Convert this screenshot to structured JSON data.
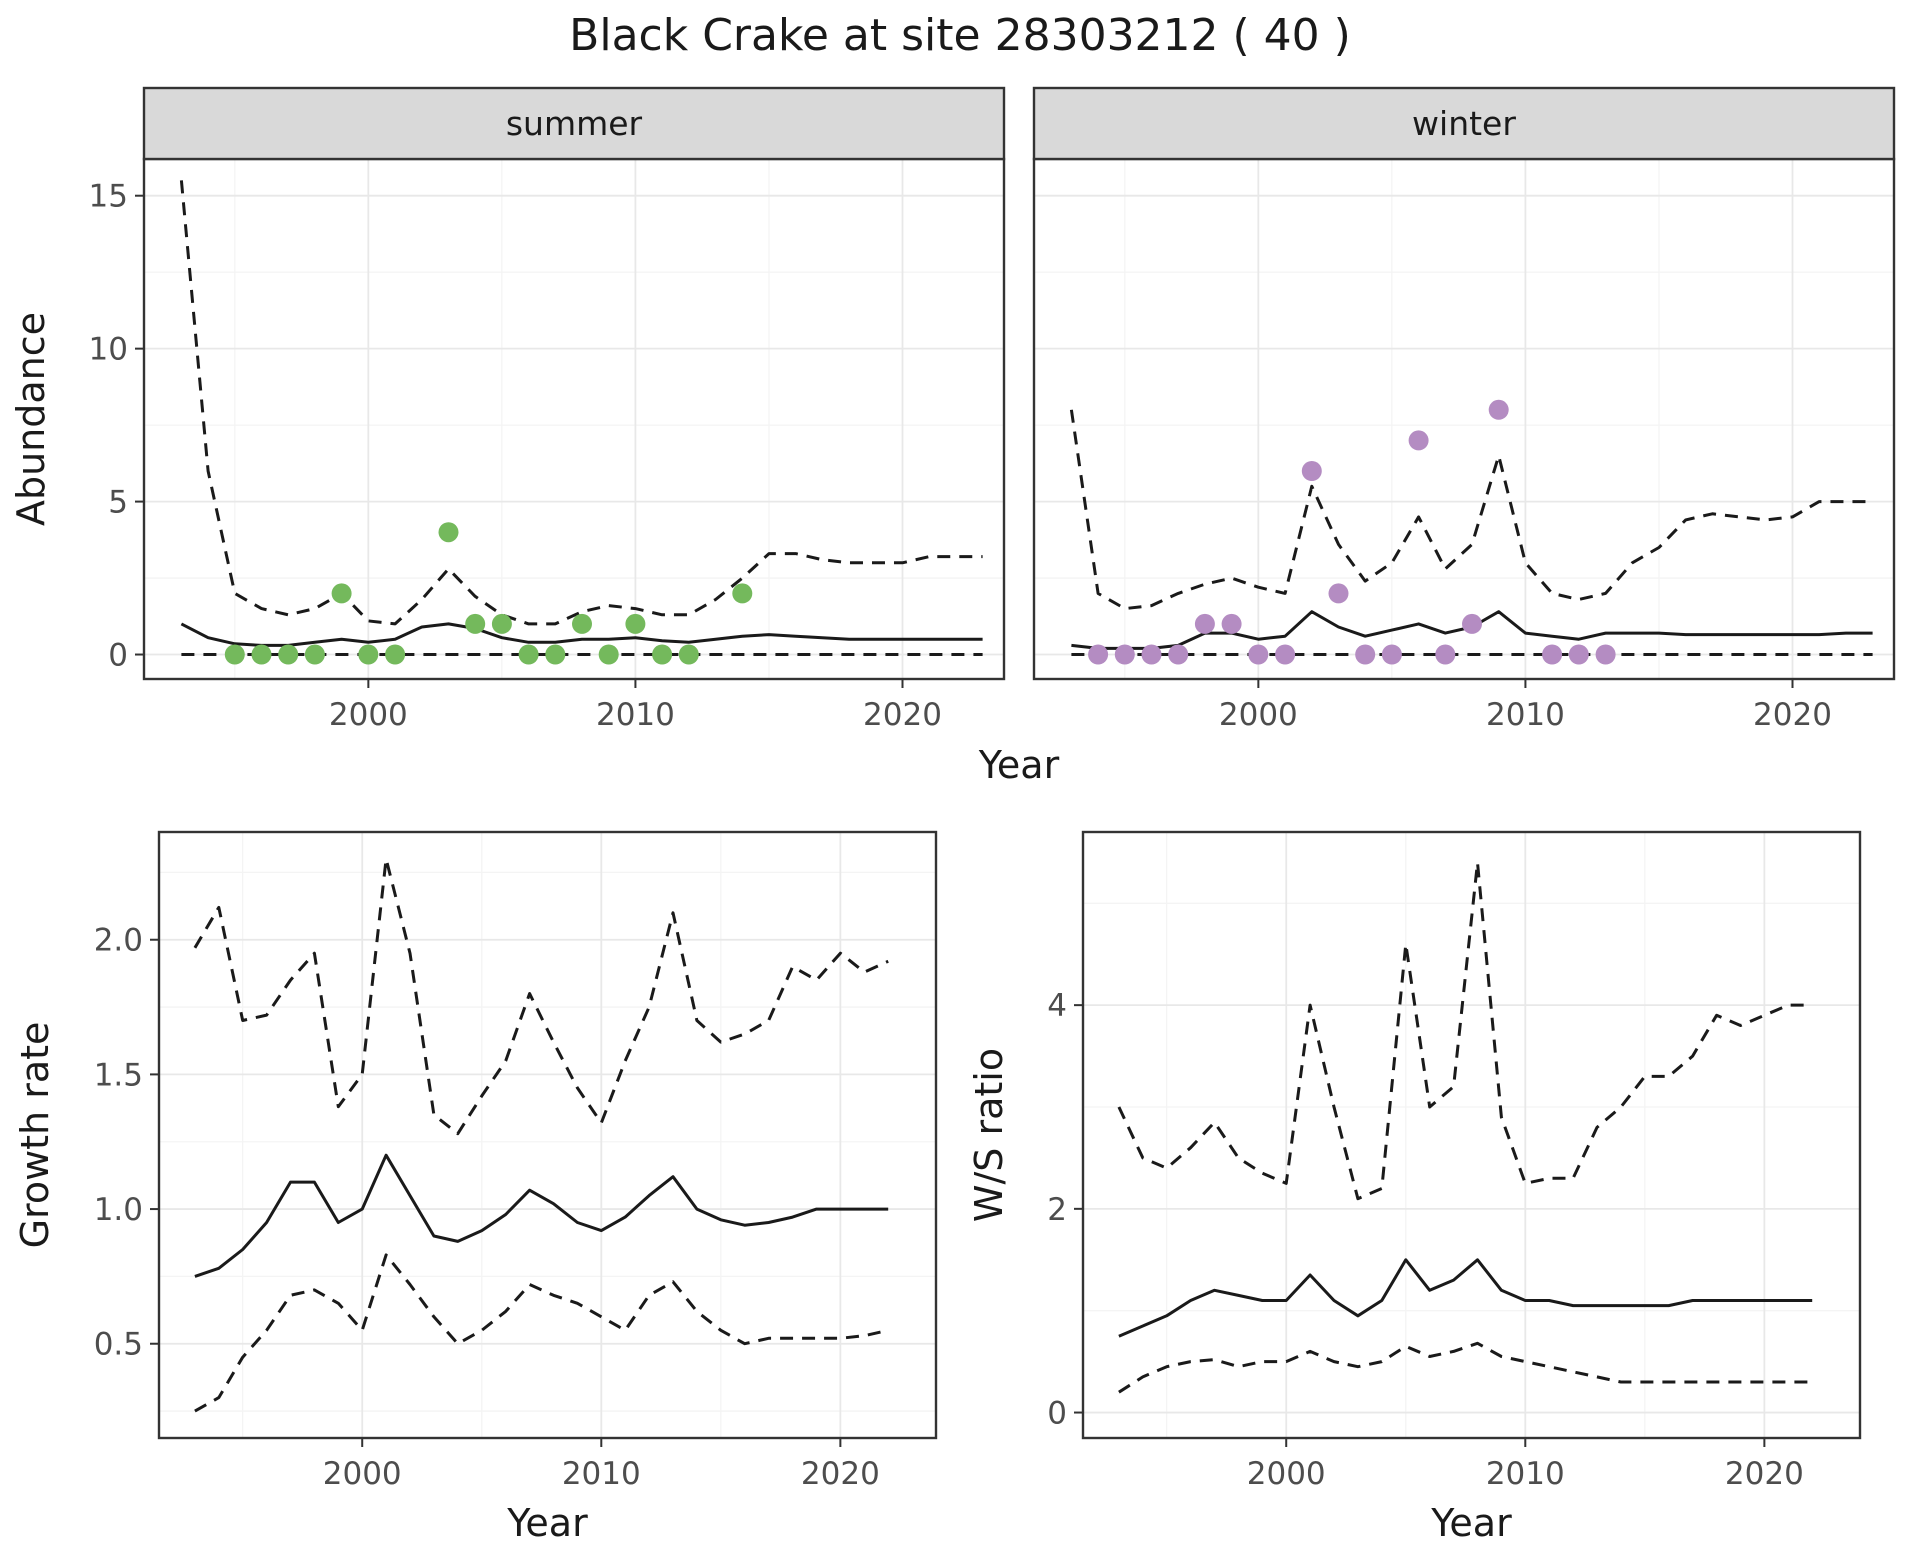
{
  "title": "Black Crake at site 28303212 ( 40 )",
  "colors": {
    "summer_points": "#74b95c",
    "winter_points": "#b48cc2",
    "line": "#1a1a1a",
    "panel_bg": "#ffffff",
    "panel_border": "#333333",
    "grid_major": "#e8e8e8",
    "grid_minor": "#f4f4f4",
    "strip_bg": "#d9d9d9",
    "strip_text": "#1a1a1a",
    "tick": "#333333",
    "tick_text": "#4d4d4d",
    "title_text": "#1a1a1a"
  },
  "chart_data": [
    {
      "id": "abundance-summer",
      "type": "line",
      "facet_label": "summer",
      "xlabel": "Year",
      "ylabel": "Abundance",
      "xlim": [
        1991.6,
        2023.8
      ],
      "ylim": [
        -0.8,
        16.2
      ],
      "xticks": [
        2000,
        2010,
        2020
      ],
      "xtick_labels": [
        "2000",
        "2010",
        "2020"
      ],
      "yticks": [
        0,
        5,
        10,
        15
      ],
      "ytick_labels": [
        "0",
        "5",
        "10",
        "15"
      ],
      "x": [
        1993,
        1994,
        1995,
        1996,
        1997,
        1998,
        1999,
        2000,
        2001,
        2002,
        2003,
        2004,
        2005,
        2006,
        2007,
        2008,
        2009,
        2010,
        2011,
        2012,
        2013,
        2014,
        2015,
        2016,
        2017,
        2018,
        2019,
        2020,
        2021,
        2022,
        2023
      ],
      "series": [
        {
          "name": "upper-95ci",
          "style": "dashed",
          "values": [
            15.5,
            6,
            2,
            1.5,
            1.3,
            1.5,
            2,
            1.1,
            1,
            1.8,
            2.8,
            1.9,
            1.3,
            1,
            1,
            1.4,
            1.6,
            1.5,
            1.3,
            1.3,
            1.8,
            2.5,
            3.3,
            3.3,
            3.1,
            3,
            3,
            3,
            3.2,
            3.2,
            3.2
          ]
        },
        {
          "name": "fitted",
          "style": "solid",
          "values": [
            1.0,
            0.55,
            0.35,
            0.3,
            0.3,
            0.4,
            0.5,
            0.4,
            0.5,
            0.9,
            1.0,
            0.85,
            0.55,
            0.4,
            0.4,
            0.5,
            0.5,
            0.55,
            0.45,
            0.4,
            0.5,
            0.6,
            0.65,
            0.6,
            0.55,
            0.5,
            0.5,
            0.5,
            0.5,
            0.5,
            0.5
          ]
        },
        {
          "name": "lower-95ci",
          "style": "dashed",
          "values": [
            0,
            0,
            0,
            0,
            0,
            0,
            0,
            0,
            0,
            0,
            0,
            0,
            0,
            0,
            0,
            0,
            0,
            0,
            0,
            0,
            0,
            0,
            0,
            0,
            0,
            0,
            0,
            0,
            0,
            0,
            0
          ]
        }
      ],
      "points": {
        "name": "observed-counts-summer",
        "color": "#74b95c",
        "x": [
          1995,
          1996,
          1997,
          1998,
          1999,
          2000,
          2001,
          2003,
          2004,
          2005,
          2006,
          2007,
          2008,
          2009,
          2010,
          2011,
          2012,
          2014
        ],
        "y": [
          0,
          0,
          0,
          0,
          2,
          0,
          0,
          4,
          1,
          1,
          0,
          0,
          1,
          0,
          1,
          0,
          0,
          2
        ]
      }
    },
    {
      "id": "abundance-winter",
      "type": "line",
      "facet_label": "winter",
      "xlabel": "Year",
      "ylabel": "Abundance",
      "xlim": [
        1991.6,
        2023.8
      ],
      "ylim": [
        -0.8,
        16.2
      ],
      "xticks": [
        2000,
        2010,
        2020
      ],
      "xtick_labels": [
        "2000",
        "2010",
        "2020"
      ],
      "yticks": [
        0,
        5,
        10,
        15
      ],
      "ytick_labels": [
        "0",
        "5",
        "10",
        "15"
      ],
      "x": [
        1993,
        1994,
        1995,
        1996,
        1997,
        1998,
        1999,
        2000,
        2001,
        2002,
        2003,
        2004,
        2005,
        2006,
        2007,
        2008,
        2009,
        2010,
        2011,
        2012,
        2013,
        2014,
        2015,
        2016,
        2017,
        2018,
        2019,
        2020,
        2021,
        2022,
        2023
      ],
      "series": [
        {
          "name": "upper-95ci",
          "style": "dashed",
          "values": [
            8,
            2,
            1.5,
            1.6,
            2,
            2.3,
            2.5,
            2.2,
            2,
            5.5,
            3.6,
            2.4,
            3,
            4.5,
            2.8,
            3.6,
            6.5,
            3,
            2,
            1.8,
            2,
            3,
            3.5,
            4.4,
            4.6,
            4.5,
            4.4,
            4.5,
            5,
            5,
            5
          ]
        },
        {
          "name": "fitted",
          "style": "solid",
          "values": [
            0.3,
            0.2,
            0.2,
            0.2,
            0.3,
            0.7,
            0.7,
            0.5,
            0.6,
            1.4,
            0.9,
            0.6,
            0.8,
            1.0,
            0.7,
            0.9,
            1.4,
            0.7,
            0.6,
            0.5,
            0.7,
            0.7,
            0.7,
            0.65,
            0.65,
            0.65,
            0.65,
            0.65,
            0.65,
            0.7,
            0.7
          ]
        },
        {
          "name": "lower-95ci",
          "style": "dashed",
          "values": [
            0,
            0,
            0,
            0,
            0,
            0,
            0,
            0,
            0,
            0,
            0,
            0,
            0,
            0,
            0,
            0,
            0,
            0,
            0,
            0,
            0,
            0,
            0,
            0,
            0,
            0,
            0,
            0,
            0,
            0,
            0
          ]
        }
      ],
      "points": {
        "name": "observed-counts-winter",
        "color": "#b48cc2",
        "x": [
          1994,
          1995,
          1996,
          1997,
          1998,
          1999,
          2000,
          2001,
          2002,
          2003,
          2004,
          2005,
          2006,
          2007,
          2008,
          2009,
          2011,
          2012,
          2013
        ],
        "y": [
          0,
          0,
          0,
          0,
          1,
          1,
          0,
          0,
          6,
          2,
          0,
          0,
          7,
          0,
          1,
          8,
          0,
          0,
          0
        ]
      }
    },
    {
      "id": "growth-rate",
      "type": "line",
      "facet_label": "",
      "xlabel": "Year",
      "ylabel": "Growth rate",
      "xlim": [
        1991.5,
        2024.0
      ],
      "ylim": [
        0.15,
        2.4
      ],
      "xticks": [
        2000,
        2010,
        2020
      ],
      "xtick_labels": [
        "2000",
        "2010",
        "2020"
      ],
      "yticks": [
        0.5,
        1.0,
        1.5,
        2.0
      ],
      "ytick_labels": [
        "0.5",
        "1.0",
        "1.5",
        "2.0"
      ],
      "x": [
        1993,
        1994,
        1995,
        1996,
        1997,
        1998,
        1999,
        2000,
        2001,
        2002,
        2003,
        2004,
        2005,
        2006,
        2007,
        2008,
        2009,
        2010,
        2011,
        2012,
        2013,
        2014,
        2015,
        2016,
        2017,
        2018,
        2019,
        2020,
        2021,
        2022
      ],
      "series": [
        {
          "name": "upper-95ci",
          "style": "dashed",
          "values": [
            1.97,
            2.12,
            1.7,
            1.72,
            1.85,
            1.95,
            1.38,
            1.5,
            2.3,
            1.95,
            1.35,
            1.28,
            1.42,
            1.55,
            1.8,
            1.62,
            1.45,
            1.32,
            1.55,
            1.75,
            2.1,
            1.7,
            1.62,
            1.65,
            1.7,
            1.9,
            1.85,
            1.95,
            1.88,
            1.92
          ]
        },
        {
          "name": "fitted",
          "style": "solid",
          "values": [
            0.75,
            0.78,
            0.85,
            0.95,
            1.1,
            1.1,
            0.95,
            1.0,
            1.2,
            1.05,
            0.9,
            0.88,
            0.92,
            0.98,
            1.07,
            1.02,
            0.95,
            0.92,
            0.97,
            1.05,
            1.12,
            1.0,
            0.96,
            0.94,
            0.95,
            0.97,
            1.0,
            1.0,
            1.0,
            1.0
          ]
        },
        {
          "name": "lower-95ci",
          "style": "dashed",
          "values": [
            0.25,
            0.3,
            0.45,
            0.55,
            0.68,
            0.7,
            0.65,
            0.55,
            0.83,
            0.72,
            0.6,
            0.5,
            0.55,
            0.62,
            0.72,
            0.68,
            0.65,
            0.6,
            0.55,
            0.68,
            0.73,
            0.62,
            0.55,
            0.5,
            0.52,
            0.52,
            0.52,
            0.52,
            0.53,
            0.55
          ]
        }
      ],
      "points": null
    },
    {
      "id": "ws-ratio",
      "type": "line",
      "facet_label": "",
      "xlabel": "Year",
      "ylabel": "W/S ratio",
      "xlim": [
        1991.5,
        2024.0
      ],
      "ylim": [
        -0.25,
        5.7
      ],
      "xticks": [
        2000,
        2010,
        2020
      ],
      "xtick_labels": [
        "2000",
        "2010",
        "2020"
      ],
      "yticks": [
        0,
        2,
        4
      ],
      "ytick_labels": [
        "0",
        "2",
        "4"
      ],
      "x": [
        1993,
        1994,
        1995,
        1996,
        1997,
        1998,
        1999,
        2000,
        2001,
        2002,
        2003,
        2004,
        2005,
        2006,
        2007,
        2008,
        2009,
        2010,
        2011,
        2012,
        2013,
        2014,
        2015,
        2016,
        2017,
        2018,
        2019,
        2020,
        2021,
        2022
      ],
      "series": [
        {
          "name": "upper-95ci",
          "style": "dashed",
          "values": [
            3.0,
            2.5,
            2.4,
            2.6,
            2.85,
            2.5,
            2.35,
            2.25,
            4.0,
            3.0,
            2.1,
            2.2,
            4.6,
            3.0,
            3.2,
            5.4,
            2.9,
            2.25,
            2.3,
            2.3,
            2.8,
            3.0,
            3.3,
            3.3,
            3.5,
            3.9,
            3.8,
            3.9,
            4.0,
            4.0
          ]
        },
        {
          "name": "fitted",
          "style": "solid",
          "values": [
            0.75,
            0.85,
            0.95,
            1.1,
            1.2,
            1.15,
            1.1,
            1.1,
            1.35,
            1.1,
            0.95,
            1.1,
            1.5,
            1.2,
            1.3,
            1.5,
            1.2,
            1.1,
            1.1,
            1.05,
            1.05,
            1.05,
            1.05,
            1.05,
            1.1,
            1.1,
            1.1,
            1.1,
            1.1,
            1.1
          ]
        },
        {
          "name": "lower-95ci",
          "style": "dashed",
          "values": [
            0.2,
            0.35,
            0.45,
            0.5,
            0.52,
            0.45,
            0.5,
            0.5,
            0.6,
            0.5,
            0.45,
            0.5,
            0.65,
            0.55,
            0.6,
            0.68,
            0.55,
            0.5,
            0.45,
            0.4,
            0.35,
            0.3,
            0.3,
            0.3,
            0.3,
            0.3,
            0.3,
            0.3,
            0.3,
            0.3
          ]
        }
      ],
      "points": null
    }
  ]
}
